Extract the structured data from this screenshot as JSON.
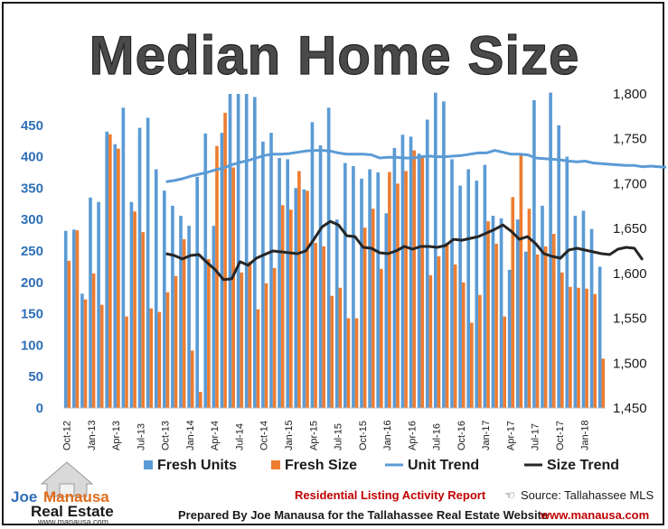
{
  "chart_data": {
    "type": "bar",
    "title": "Median Home Size",
    "x_tick_labels": [
      "Oct-12",
      "Jan-13",
      "Apr-13",
      "Jul-13",
      "Oct-13",
      "Jan-14",
      "Apr-14",
      "Jul-14",
      "Oct-14",
      "Jan-15",
      "Apr-15",
      "Jul-15",
      "Oct-15",
      "Jan-16",
      "Apr-16",
      "Jul-16",
      "Oct-16",
      "Jan-17",
      "Apr-17",
      "Jul-17",
      "Oct-17",
      "Jan-18"
    ],
    "y_left": {
      "min": 0,
      "max": 500,
      "ticks": [
        0,
        50,
        100,
        150,
        200,
        250,
        300,
        350,
        400,
        450
      ]
    },
    "y_right": {
      "min": 1450,
      "max": 1800,
      "ticks": [
        "1,450",
        "1,500",
        "1,550",
        "1,600",
        "1,650",
        "1,700",
        "1,750",
        "1,800"
      ]
    },
    "series": [
      {
        "name": "Fresh Units",
        "axis": "left",
        "type": "bar",
        "color": "#5b9bd5",
        "values": [
          282,
          284,
          182,
          335,
          328,
          440,
          420,
          478,
          328,
          446,
          462,
          380,
          346,
          322,
          306,
          290,
          368,
          437,
          290,
          438,
          500,
          500,
          500,
          495,
          424,
          438,
          398,
          396,
          350,
          348,
          455,
          418,
          478,
          300,
          390,
          385,
          365,
          380,
          375,
          310,
          414,
          435,
          432,
          405,
          459,
          502,
          488,
          396,
          354,
          380,
          362,
          387,
          306,
          302,
          220,
          300,
          249,
          490,
          322,
          502,
          450,
          400,
          306,
          314,
          285,
          225
        ]
      },
      {
        "name": "Fresh Size",
        "axis": "right",
        "type": "bar",
        "color": "#ed7d31",
        "values": [
          1614,
          1648,
          1571,
          1600,
          1565,
          1755,
          1739,
          1552,
          1669,
          1646,
          1561,
          1557,
          1579,
          1597,
          1638,
          1514,
          1468,
          1616,
          1742,
          1779,
          1718,
          1601,
          1613,
          1560,
          1589,
          1606,
          1676,
          1671,
          1714,
          1692,
          1634,
          1630,
          1575,
          1584,
          1550,
          1550,
          1651,
          1672,
          1605,
          1713,
          1700,
          1714,
          1737,
          1729,
          1598,
          1619,
          1634,
          1610,
          1590,
          1545,
          1576,
          1658,
          1633,
          1552,
          1685,
          1732,
          1672,
          1621,
          1630,
          1644,
          1601,
          1585,
          1584,
          1583,
          1577,
          1505
        ]
      },
      {
        "name": "Unit Trend",
        "axis": "left",
        "type": "line",
        "color": "#5b9bd5",
        "x_start_index": 12,
        "values": [
          360,
          362,
          365,
          369,
          372,
          375,
          379,
          382,
          387,
          391,
          394,
          398,
          402,
          404,
          404,
          405,
          407,
          409,
          410,
          410,
          409,
          406,
          404,
          404,
          404,
          403,
          398,
          399,
          399,
          398,
          398,
          400,
          401,
          400,
          400,
          401,
          402,
          404,
          406,
          406,
          410,
          407,
          404,
          404,
          403,
          398,
          397,
          396,
          395,
          393,
          392,
          393,
          390,
          389,
          388,
          387,
          386,
          386,
          384,
          385,
          384,
          383,
          382,
          383,
          376
        ]
      },
      {
        "name": "Size Trend",
        "axis": "right",
        "type": "line",
        "color": "#262626",
        "x_start_index": 12,
        "values": [
          1622,
          1620,
          1616,
          1620,
          1621,
          1612,
          1604,
          1593,
          1594,
          1613,
          1609,
          1617,
          1621,
          1625,
          1624,
          1623,
          1622,
          1625,
          1638,
          1652,
          1658,
          1654,
          1642,
          1641,
          1629,
          1628,
          1623,
          1622,
          1625,
          1630,
          1627,
          1630,
          1630,
          1629,
          1631,
          1638,
          1637,
          1639,
          1641,
          1645,
          1649,
          1654,
          1647,
          1638,
          1641,
          1633,
          1622,
          1619,
          1617,
          1626,
          1628,
          1626,
          1624,
          1622,
          1621,
          1627,
          1629,
          1628,
          1615
        ]
      }
    ],
    "legend": {
      "position": "bottom",
      "entries": [
        "Fresh Units",
        "Fresh Size",
        "Unit Trend",
        "Size Trend"
      ]
    },
    "grid": false
  },
  "footer": {
    "report_title": "Residential Listing Activity Report",
    "source": "Source: Tallahassee MLS",
    "prepared_by": "Prepared By Joe Manausa for the Tallahassee Real Estate Website",
    "website": "www.manausa.com"
  },
  "logo": {
    "joe": "Joe",
    "manausa": "Manausa",
    "real_estate": "Real Estate",
    "url": "www.manausa.com"
  }
}
